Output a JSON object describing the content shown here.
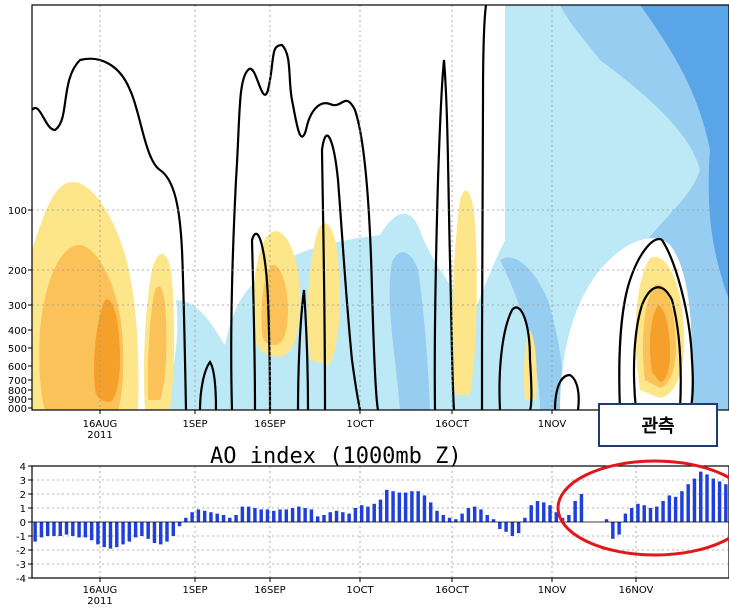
{
  "colors": {
    "warm_light": "#fde58a",
    "warm_mid": "#fbc25a",
    "warm_dark": "#f5a02a",
    "cool_light": "#bde9f6",
    "cool_mid": "#96cdf0",
    "cool_dark": "#5aa5e8",
    "bar": "#1f3fdc",
    "highlight": "#e2171b"
  },
  "annotation": {
    "label": "관측"
  },
  "chart_data": [
    {
      "type": "heatmap",
      "title": "",
      "xlabel": "",
      "ylabel": "",
      "x_ticks": [
        "16AUG",
        "1SEP",
        "16SEP",
        "1OCT",
        "16OCT",
        "1NOV"
      ],
      "x_tick_sublabel": "2011",
      "y_ticks": [
        "100",
        "200",
        "300",
        "400",
        "500",
        "600",
        "700",
        "800",
        "900",
        "000"
      ],
      "y_scale": "log-pressure",
      "grid": true
    },
    {
      "type": "bar",
      "title": "AO index (1000mb Z)",
      "xlabel": "",
      "ylabel": "",
      "ylim": [
        -4,
        4
      ],
      "y_ticks": [
        "4",
        "3",
        "2",
        "1",
        "0",
        "-1",
        "-2",
        "-3",
        "-4"
      ],
      "x_ticks": [
        "16AUG",
        "1SEP",
        "16SEP",
        "1OCT",
        "16OCT",
        "1NOV",
        "16NOV"
      ],
      "x_tick_sublabel": "2011",
      "grid": true,
      "values": [
        -1.4,
        -1.1,
        -1.0,
        -1.0,
        -1.0,
        -0.9,
        -1.0,
        -1.1,
        -1.1,
        -1.3,
        -1.6,
        -1.8,
        -1.9,
        -1.8,
        -1.6,
        -1.4,
        -1.1,
        -1.0,
        -1.2,
        -1.5,
        -1.6,
        -1.4,
        -1.0,
        -0.3,
        0.3,
        0.7,
        0.9,
        0.8,
        0.7,
        0.6,
        0.5,
        0.3,
        0.5,
        1.1,
        1.1,
        1.0,
        0.9,
        0.9,
        0.8,
        0.9,
        0.9,
        1.0,
        1.1,
        1.0,
        0.9,
        0.4,
        0.5,
        0.7,
        0.8,
        0.7,
        0.6,
        1.0,
        1.2,
        1.1,
        1.3,
        1.6,
        2.3,
        2.2,
        2.1,
        2.1,
        2.2,
        2.2,
        1.9,
        1.4,
        0.8,
        0.5,
        0.3,
        0.2,
        0.6,
        1.0,
        1.1,
        0.9,
        0.5,
        0.2,
        -0.5,
        -0.7,
        -1.0,
        -0.8,
        0.3,
        1.2,
        1.5,
        1.4,
        1.2,
        0.7,
        0.3,
        0.5,
        1.5,
        2.0,
        0.0,
        0.0,
        0.0,
        0.2,
        -1.2,
        -0.9,
        0.6,
        1.0,
        1.3,
        1.2,
        1.0,
        1.1,
        1.5,
        1.9,
        1.8,
        2.2,
        2.7,
        3.1,
        3.6,
        3.4,
        3.1,
        2.9,
        2.7
      ]
    }
  ]
}
